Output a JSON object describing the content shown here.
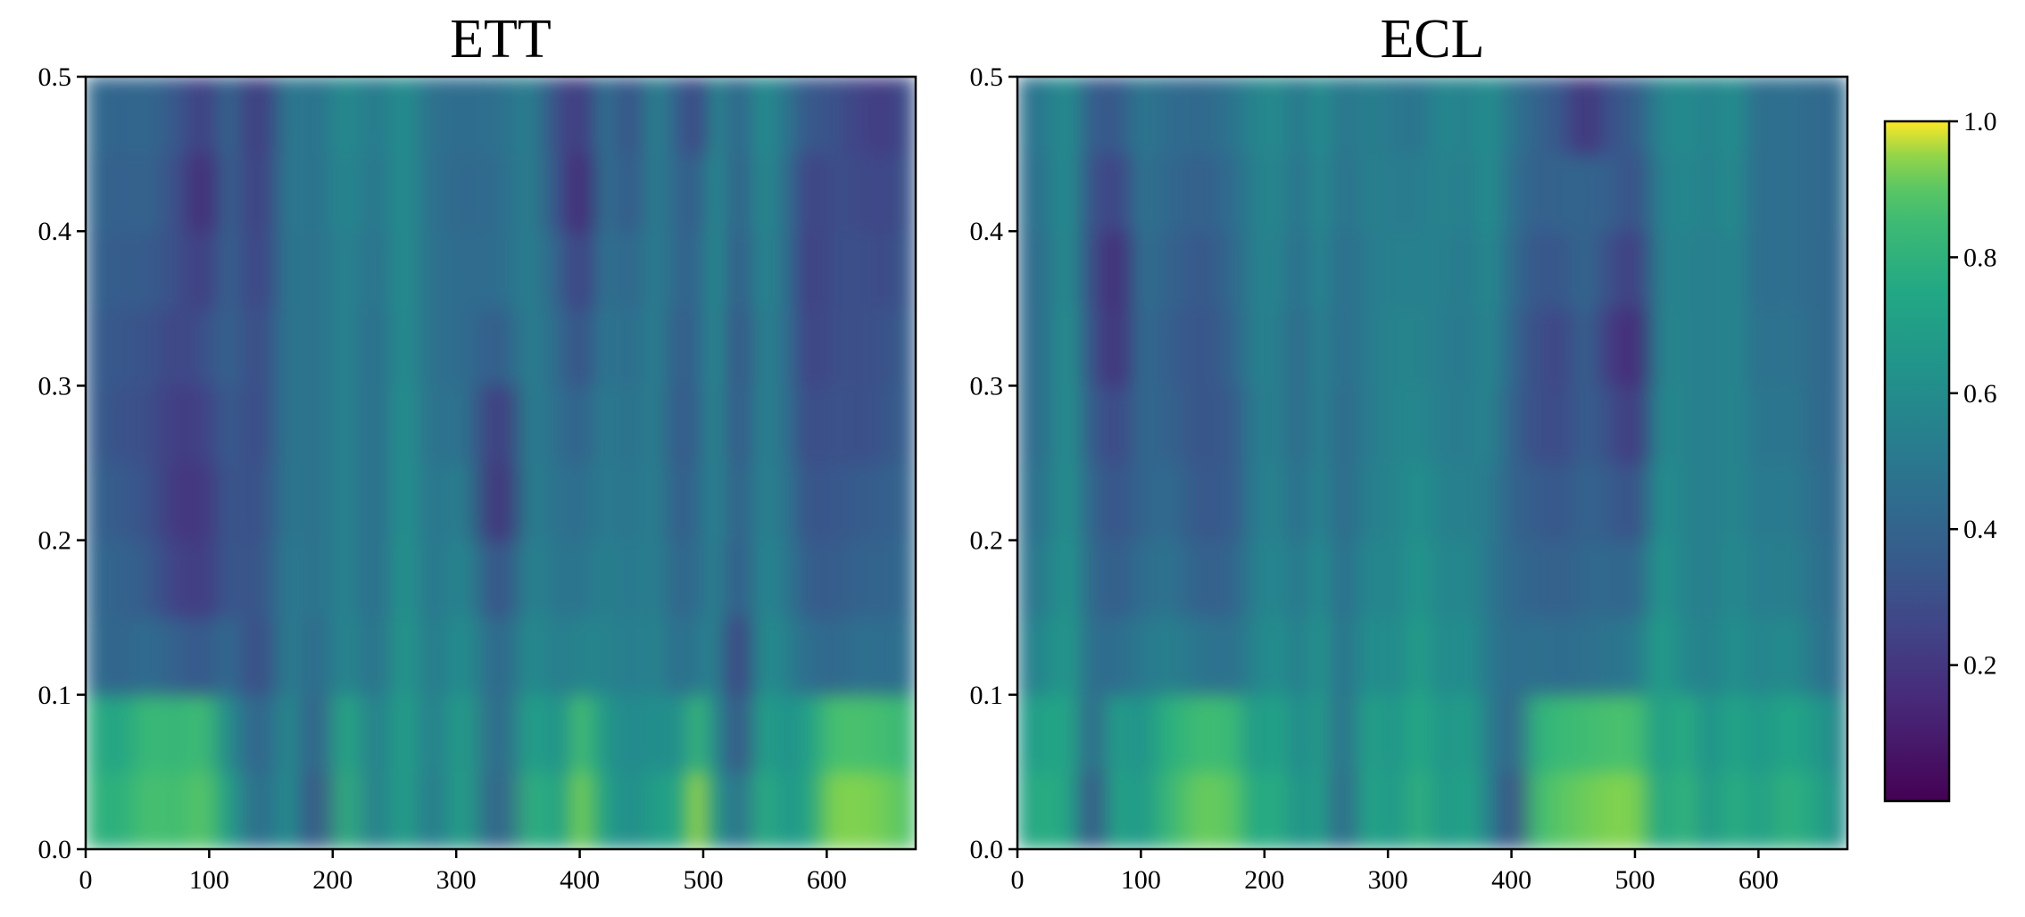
{
  "colors": {
    "colormap": "viridis",
    "low": "#440154",
    "high": "#fde725"
  },
  "chart_data": [
    {
      "type": "heatmap",
      "title": "ETT",
      "xlabel": "",
      "ylabel": "",
      "xlim": [
        0,
        672
      ],
      "ylim": [
        0.0,
        0.5
      ],
      "x_ticks": [
        "0",
        "100",
        "200",
        "300",
        "400",
        "500",
        "600"
      ],
      "y_ticks": [
        "0.0",
        "0.1",
        "0.2",
        "0.3",
        "0.4",
        "0.5"
      ],
      "value_range": [
        0.0,
        1.0
      ],
      "grid": false,
      "y_bands": [
        0.025,
        0.075,
        0.125,
        0.175,
        0.225,
        0.275,
        0.325,
        0.375,
        0.425,
        0.475
      ],
      "columns": [
        {
          "x": 0,
          "v": [
            0.82,
            0.8,
            0.45,
            0.42,
            0.4,
            0.38,
            0.38,
            0.4,
            0.42,
            0.44
          ]
        },
        {
          "x": 25,
          "v": [
            0.78,
            0.72,
            0.4,
            0.4,
            0.36,
            0.32,
            0.34,
            0.36,
            0.38,
            0.4
          ]
        },
        {
          "x": 50,
          "v": [
            0.88,
            0.84,
            0.44,
            0.36,
            0.32,
            0.3,
            0.32,
            0.36,
            0.4,
            0.42
          ]
        },
        {
          "x": 75,
          "v": [
            0.86,
            0.82,
            0.38,
            0.24,
            0.2,
            0.22,
            0.26,
            0.3,
            0.3,
            0.34
          ]
        },
        {
          "x": 95,
          "v": [
            0.9,
            0.86,
            0.34,
            0.22,
            0.2,
            0.24,
            0.3,
            0.22,
            0.14,
            0.22
          ]
        },
        {
          "x": 115,
          "v": [
            0.7,
            0.6,
            0.44,
            0.34,
            0.34,
            0.36,
            0.4,
            0.4,
            0.4,
            0.42
          ]
        },
        {
          "x": 140,
          "v": [
            0.42,
            0.38,
            0.28,
            0.32,
            0.3,
            0.28,
            0.28,
            0.24,
            0.22,
            0.2
          ]
        },
        {
          "x": 165,
          "v": [
            0.62,
            0.6,
            0.54,
            0.52,
            0.5,
            0.5,
            0.5,
            0.5,
            0.52,
            0.52
          ]
        },
        {
          "x": 185,
          "v": [
            0.3,
            0.36,
            0.42,
            0.46,
            0.46,
            0.46,
            0.46,
            0.46,
            0.46,
            0.46
          ]
        },
        {
          "x": 210,
          "v": [
            0.8,
            0.76,
            0.58,
            0.56,
            0.56,
            0.56,
            0.56,
            0.56,
            0.58,
            0.6
          ]
        },
        {
          "x": 235,
          "v": [
            0.52,
            0.52,
            0.46,
            0.44,
            0.44,
            0.44,
            0.44,
            0.46,
            0.48,
            0.5
          ]
        },
        {
          "x": 258,
          "v": [
            0.72,
            0.72,
            0.68,
            0.66,
            0.64,
            0.64,
            0.62,
            0.62,
            0.62,
            0.62
          ]
        },
        {
          "x": 280,
          "v": [
            0.5,
            0.52,
            0.5,
            0.48,
            0.48,
            0.46,
            0.46,
            0.46,
            0.46,
            0.46
          ]
        },
        {
          "x": 305,
          "v": [
            0.72,
            0.7,
            0.62,
            0.58,
            0.54,
            0.48,
            0.44,
            0.44,
            0.42,
            0.44
          ]
        },
        {
          "x": 335,
          "v": [
            0.36,
            0.4,
            0.4,
            0.3,
            0.16,
            0.2,
            0.36,
            0.44,
            0.44,
            0.46
          ]
        },
        {
          "x": 360,
          "v": [
            0.8,
            0.72,
            0.6,
            0.56,
            0.54,
            0.54,
            0.54,
            0.54,
            0.54,
            0.54
          ]
        },
        {
          "x": 385,
          "v": [
            0.7,
            0.62,
            0.52,
            0.48,
            0.46,
            0.44,
            0.42,
            0.38,
            0.3,
            0.28
          ]
        },
        {
          "x": 400,
          "v": [
            0.94,
            0.88,
            0.56,
            0.48,
            0.44,
            0.38,
            0.3,
            0.22,
            0.12,
            0.2
          ]
        },
        {
          "x": 420,
          "v": [
            0.7,
            0.66,
            0.56,
            0.54,
            0.52,
            0.52,
            0.5,
            0.48,
            0.48,
            0.48
          ]
        },
        {
          "x": 440,
          "v": [
            0.6,
            0.58,
            0.52,
            0.5,
            0.48,
            0.46,
            0.44,
            0.4,
            0.34,
            0.3
          ]
        },
        {
          "x": 462,
          "v": [
            0.7,
            0.62,
            0.56,
            0.54,
            0.54,
            0.54,
            0.54,
            0.54,
            0.54,
            0.56
          ]
        },
        {
          "x": 480,
          "v": [
            0.72,
            0.6,
            0.44,
            0.4,
            0.36,
            0.34,
            0.36,
            0.4,
            0.4,
            0.38
          ]
        },
        {
          "x": 495,
          "v": [
            0.96,
            0.84,
            0.5,
            0.44,
            0.42,
            0.4,
            0.4,
            0.4,
            0.36,
            0.24
          ]
        },
        {
          "x": 510,
          "v": [
            0.66,
            0.6,
            0.56,
            0.56,
            0.58,
            0.6,
            0.62,
            0.62,
            0.62,
            0.6
          ]
        },
        {
          "x": 528,
          "v": [
            0.44,
            0.3,
            0.22,
            0.34,
            0.36,
            0.32,
            0.3,
            0.34,
            0.36,
            0.38
          ]
        },
        {
          "x": 548,
          "v": [
            0.78,
            0.72,
            0.62,
            0.58,
            0.56,
            0.56,
            0.56,
            0.58,
            0.6,
            0.62
          ]
        },
        {
          "x": 568,
          "v": [
            0.66,
            0.62,
            0.54,
            0.5,
            0.48,
            0.46,
            0.46,
            0.46,
            0.46,
            0.48
          ]
        },
        {
          "x": 585,
          "v": [
            0.72,
            0.7,
            0.44,
            0.36,
            0.32,
            0.28,
            0.24,
            0.22,
            0.24,
            0.34
          ]
        },
        {
          "x": 605,
          "v": [
            0.94,
            0.88,
            0.42,
            0.36,
            0.34,
            0.32,
            0.3,
            0.3,
            0.3,
            0.32
          ]
        },
        {
          "x": 630,
          "v": [
            0.94,
            0.88,
            0.46,
            0.4,
            0.36,
            0.3,
            0.3,
            0.3,
            0.28,
            0.24
          ]
        },
        {
          "x": 650,
          "v": [
            0.92,
            0.86,
            0.44,
            0.4,
            0.38,
            0.34,
            0.32,
            0.28,
            0.26,
            0.22
          ]
        },
        {
          "x": 672,
          "v": [
            0.88,
            0.82,
            0.48,
            0.44,
            0.42,
            0.4,
            0.4,
            0.38,
            0.36,
            0.34
          ]
        }
      ]
    },
    {
      "type": "heatmap",
      "title": "ECL",
      "xlabel": "",
      "ylabel": "",
      "xlim": [
        0,
        672
      ],
      "ylim": [
        0.0,
        0.5
      ],
      "x_ticks": [
        "0",
        "100",
        "200",
        "300",
        "400",
        "500",
        "600"
      ],
      "y_ticks": [
        "0.0",
        "0.1",
        "0.2",
        "0.3",
        "0.4",
        "0.5"
      ],
      "value_range": [
        0.0,
        1.0
      ],
      "grid": false,
      "y_bands": [
        0.025,
        0.075,
        0.125,
        0.175,
        0.225,
        0.275,
        0.325,
        0.375,
        0.425,
        0.475
      ],
      "columns": [
        {
          "x": 0,
          "v": [
            0.7,
            0.66,
            0.5,
            0.46,
            0.44,
            0.42,
            0.42,
            0.42,
            0.44,
            0.46
          ]
        },
        {
          "x": 20,
          "v": [
            0.78,
            0.72,
            0.58,
            0.52,
            0.48,
            0.46,
            0.46,
            0.46,
            0.48,
            0.5
          ]
        },
        {
          "x": 42,
          "v": [
            0.74,
            0.74,
            0.68,
            0.66,
            0.64,
            0.64,
            0.64,
            0.62,
            0.62,
            0.62
          ]
        },
        {
          "x": 60,
          "v": [
            0.3,
            0.4,
            0.44,
            0.42,
            0.4,
            0.36,
            0.32,
            0.3,
            0.32,
            0.36
          ]
        },
        {
          "x": 80,
          "v": [
            0.74,
            0.7,
            0.44,
            0.36,
            0.32,
            0.26,
            0.16,
            0.14,
            0.24,
            0.34
          ]
        },
        {
          "x": 100,
          "v": [
            0.66,
            0.62,
            0.5,
            0.44,
            0.4,
            0.42,
            0.44,
            0.46,
            0.48,
            0.5
          ]
        },
        {
          "x": 120,
          "v": [
            0.82,
            0.78,
            0.54,
            0.48,
            0.44,
            0.4,
            0.38,
            0.4,
            0.42,
            0.44
          ]
        },
        {
          "x": 150,
          "v": [
            0.92,
            0.86,
            0.48,
            0.38,
            0.34,
            0.32,
            0.32,
            0.34,
            0.38,
            0.42
          ]
        },
        {
          "x": 175,
          "v": [
            0.9,
            0.84,
            0.46,
            0.4,
            0.36,
            0.36,
            0.4,
            0.42,
            0.44,
            0.48
          ]
        },
        {
          "x": 192,
          "v": [
            0.74,
            0.66,
            0.56,
            0.54,
            0.52,
            0.52,
            0.54,
            0.54,
            0.54,
            0.56
          ]
        },
        {
          "x": 210,
          "v": [
            0.78,
            0.74,
            0.62,
            0.58,
            0.56,
            0.54,
            0.54,
            0.56,
            0.58,
            0.6
          ]
        },
        {
          "x": 228,
          "v": [
            0.62,
            0.58,
            0.52,
            0.48,
            0.44,
            0.42,
            0.42,
            0.44,
            0.46,
            0.48
          ]
        },
        {
          "x": 245,
          "v": [
            0.72,
            0.7,
            0.66,
            0.62,
            0.58,
            0.56,
            0.56,
            0.58,
            0.6,
            0.62
          ]
        },
        {
          "x": 262,
          "v": [
            0.4,
            0.44,
            0.46,
            0.44,
            0.42,
            0.42,
            0.44,
            0.44,
            0.46,
            0.48
          ]
        },
        {
          "x": 285,
          "v": [
            0.74,
            0.72,
            0.62,
            0.58,
            0.54,
            0.52,
            0.52,
            0.52,
            0.54,
            0.54
          ]
        },
        {
          "x": 305,
          "v": [
            0.66,
            0.64,
            0.58,
            0.56,
            0.56,
            0.56,
            0.56,
            0.54,
            0.52,
            0.5
          ]
        },
        {
          "x": 325,
          "v": [
            0.8,
            0.76,
            0.7,
            0.66,
            0.62,
            0.58,
            0.56,
            0.54,
            0.52,
            0.48
          ]
        },
        {
          "x": 345,
          "v": [
            0.66,
            0.64,
            0.58,
            0.56,
            0.54,
            0.52,
            0.52,
            0.54,
            0.56,
            0.58
          ]
        },
        {
          "x": 365,
          "v": [
            0.74,
            0.7,
            0.62,
            0.58,
            0.54,
            0.52,
            0.5,
            0.5,
            0.52,
            0.54
          ]
        },
        {
          "x": 382,
          "v": [
            0.56,
            0.54,
            0.5,
            0.5,
            0.52,
            0.56,
            0.58,
            0.6,
            0.62,
            0.62
          ]
        },
        {
          "x": 400,
          "v": [
            0.28,
            0.38,
            0.44,
            0.42,
            0.4,
            0.4,
            0.42,
            0.44,
            0.46,
            0.48
          ]
        },
        {
          "x": 420,
          "v": [
            0.86,
            0.8,
            0.46,
            0.4,
            0.36,
            0.3,
            0.3,
            0.34,
            0.38,
            0.4
          ]
        },
        {
          "x": 440,
          "v": [
            0.9,
            0.84,
            0.44,
            0.38,
            0.34,
            0.28,
            0.26,
            0.34,
            0.4,
            0.34
          ]
        },
        {
          "x": 460,
          "v": [
            0.92,
            0.86,
            0.46,
            0.42,
            0.4,
            0.38,
            0.4,
            0.42,
            0.4,
            0.18
          ]
        },
        {
          "x": 480,
          "v": [
            0.94,
            0.88,
            0.48,
            0.42,
            0.36,
            0.3,
            0.22,
            0.3,
            0.38,
            0.32
          ]
        },
        {
          "x": 500,
          "v": [
            0.94,
            0.88,
            0.5,
            0.4,
            0.3,
            0.2,
            0.14,
            0.22,
            0.3,
            0.36
          ]
        },
        {
          "x": 520,
          "v": [
            0.72,
            0.68,
            0.7,
            0.66,
            0.62,
            0.58,
            0.56,
            0.54,
            0.54,
            0.56
          ]
        },
        {
          "x": 540,
          "v": [
            0.82,
            0.78,
            0.58,
            0.56,
            0.56,
            0.56,
            0.56,
            0.56,
            0.58,
            0.6
          ]
        },
        {
          "x": 560,
          "v": [
            0.66,
            0.62,
            0.54,
            0.52,
            0.52,
            0.52,
            0.52,
            0.52,
            0.54,
            0.54
          ]
        },
        {
          "x": 580,
          "v": [
            0.78,
            0.74,
            0.62,
            0.6,
            0.58,
            0.58,
            0.58,
            0.58,
            0.6,
            0.62
          ]
        },
        {
          "x": 600,
          "v": [
            0.7,
            0.66,
            0.56,
            0.52,
            0.5,
            0.48,
            0.46,
            0.44,
            0.44,
            0.44
          ]
        },
        {
          "x": 625,
          "v": [
            0.8,
            0.74,
            0.6,
            0.54,
            0.52,
            0.5,
            0.48,
            0.46,
            0.46,
            0.46
          ]
        },
        {
          "x": 650,
          "v": [
            0.72,
            0.66,
            0.48,
            0.46,
            0.44,
            0.42,
            0.42,
            0.42,
            0.42,
            0.42
          ]
        },
        {
          "x": 672,
          "v": [
            0.58,
            0.54,
            0.44,
            0.42,
            0.42,
            0.42,
            0.42,
            0.42,
            0.44,
            0.44
          ]
        }
      ]
    }
  ],
  "colorbar": {
    "range": [
      0.0,
      1.0
    ],
    "ticks": [
      "0.2",
      "0.4",
      "0.6",
      "0.8",
      "1.0"
    ],
    "tick_values": [
      0.2,
      0.4,
      0.6,
      0.8,
      1.0
    ]
  }
}
